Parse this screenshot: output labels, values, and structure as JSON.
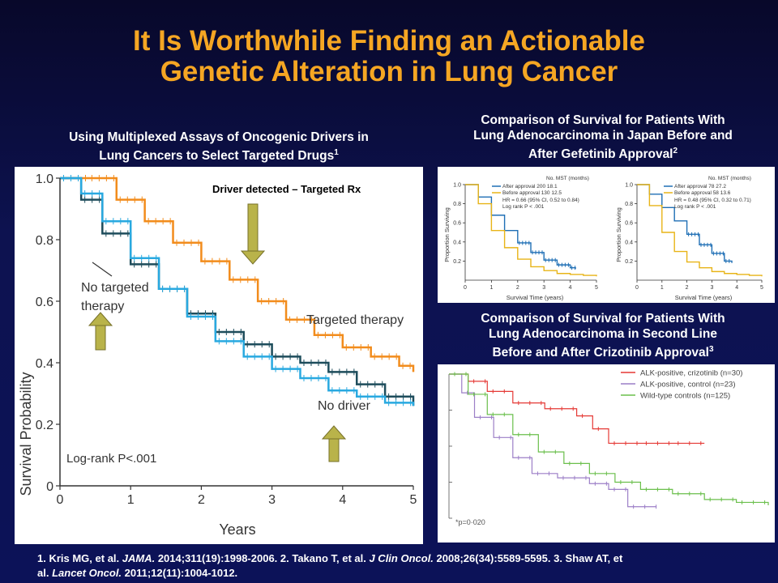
{
  "slide": {
    "title_line1": "It Is Worthwhile Finding an Actionable",
    "title_line2": "Genetic Alteration in Lung Cancer",
    "left_heading_line1": "Using Multiplexed Assays of Oncogenic Drivers in",
    "left_heading_line2": "Lung Cancers to Select Targeted Drugs",
    "left_heading_sup": "1",
    "right_top_heading_line1": "Comparison of Survival for Patients With",
    "right_top_heading_line2": "Lung Adenocarcinoma in Japan Before and",
    "right_top_heading_line3": "After Gefetinib Approval",
    "right_top_heading_sup": "2",
    "right_bottom_heading_line1": "Comparison of Survival for Patients With",
    "right_bottom_heading_line2": "Lung Adenocarcinoma in Second Line",
    "right_bottom_heading_line3": "Before and After Crizotinib Approval",
    "right_bottom_heading_sup": "3",
    "refs": {
      "r1a": "1. Kris MG, et al. ",
      "r1j": "JAMA.",
      "r1b": " 2014;311(19):1998-2006. 2. Takano T, et al. ",
      "r2j": "J Clin Oncol.",
      "r2b": " 2008;26(34):5589-5595. 3. Shaw AT, et",
      "r3a": "al. ",
      "r3j": "Lancet Oncol.",
      "r3b": " 2011;12(11):1004-1012."
    },
    "colors": {
      "title": "#f5a623",
      "targeted": "#f28c1c",
      "no_targeted": "#1e4d5c",
      "no_driver": "#29a9e0",
      "arrow": "#b9b34a",
      "before_approval": "#e8b417",
      "after_approval": "#1f6fb5",
      "alk_crizotinib": "#e53935",
      "alk_control": "#9c7fc7",
      "wild_type": "#6abf4b"
    }
  },
  "chart_data": [
    {
      "type": "line",
      "id": "kris",
      "ylabel": "Survival Probability",
      "xlabel": "Years",
      "xlim": [
        0,
        5
      ],
      "ylim": [
        0,
        1
      ],
      "xticks": [
        "0",
        "1",
        "2",
        "3",
        "4",
        "5"
      ],
      "yticks": [
        "0",
        "0.2",
        "0.4",
        "0.6",
        "0.8",
        "1.0"
      ],
      "annotation_top": "Driver detected – Targeted Rx",
      "annotation_pvalue": "Log-rank P<.001",
      "label_no_targeted_1": "No targeted",
      "label_no_targeted_2": "therapy",
      "label_targeted": "Targeted therapy",
      "label_no_driver": "No driver",
      "series": [
        {
          "name": "Targeted therapy",
          "color": "#f28c1c",
          "x": [
            0,
            0.4,
            0.8,
            1.2,
            1.6,
            2.0,
            2.4,
            2.8,
            3.2,
            3.6,
            4.0,
            4.4,
            4.8,
            5.0
          ],
          "y": [
            1.0,
            1.0,
            0.93,
            0.86,
            0.79,
            0.73,
            0.67,
            0.6,
            0.54,
            0.49,
            0.45,
            0.42,
            0.39,
            0.37
          ]
        },
        {
          "name": "No targeted therapy",
          "color": "#1e4d5c",
          "x": [
            0,
            0.3,
            0.6,
            1.0,
            1.4,
            1.8,
            2.2,
            2.6,
            3.0,
            3.4,
            3.8,
            4.2,
            4.6,
            5.0
          ],
          "y": [
            1.0,
            0.93,
            0.82,
            0.72,
            0.64,
            0.56,
            0.5,
            0.46,
            0.42,
            0.4,
            0.37,
            0.33,
            0.29,
            0.26
          ]
        },
        {
          "name": "No driver",
          "color": "#29a9e0",
          "x": [
            0,
            0.3,
            0.6,
            1.0,
            1.4,
            1.8,
            2.2,
            2.6,
            3.0,
            3.4,
            3.8,
            4.2,
            4.6,
            5.0
          ],
          "y": [
            1.0,
            0.95,
            0.86,
            0.74,
            0.64,
            0.55,
            0.47,
            0.42,
            0.38,
            0.35,
            0.31,
            0.29,
            0.27,
            0.26
          ]
        }
      ]
    },
    {
      "type": "line",
      "id": "takano_a",
      "ylabel": "Proportion Surviving",
      "xlabel": "Survival Time (years)",
      "xlim": [
        0,
        5
      ],
      "ylim": [
        0,
        1
      ],
      "xticks": [
        "0",
        "1",
        "2",
        "3",
        "4",
        "5"
      ],
      "yticks": [
        "0.2",
        "0.4",
        "0.6",
        "0.8",
        "1.0"
      ],
      "legend_header": "No.   MST (months)",
      "legend_row1": "After approval   200    18.1",
      "legend_row2": "Before approval  130    12.5",
      "hr_text": "HR = 0.66 (95% CI, 0.52 to 0.84)",
      "logrank_text": "Log rank P < .001",
      "series": [
        {
          "name": "After approval",
          "color": "#1f6fb5",
          "x": [
            0,
            0.5,
            1.0,
            1.5,
            2.0,
            2.5,
            3.0,
            3.5,
            4.0,
            4.2
          ],
          "y": [
            1.0,
            0.87,
            0.68,
            0.52,
            0.39,
            0.29,
            0.21,
            0.16,
            0.13,
            0.12
          ]
        },
        {
          "name": "Before approval",
          "color": "#e8b417",
          "x": [
            0,
            0.5,
            1.0,
            1.5,
            2.0,
            2.5,
            3.0,
            3.5,
            4.0,
            4.5,
            5.0
          ],
          "y": [
            1.0,
            0.8,
            0.52,
            0.34,
            0.22,
            0.14,
            0.1,
            0.07,
            0.06,
            0.05,
            0.04
          ]
        }
      ]
    },
    {
      "type": "line",
      "id": "takano_b",
      "ylabel": "Proportion Surviving",
      "xlabel": "Survival Time (years)",
      "xlim": [
        0,
        5
      ],
      "ylim": [
        0,
        1
      ],
      "xticks": [
        "0",
        "1",
        "2",
        "3",
        "4",
        "5"
      ],
      "yticks": [
        "0.2",
        "0.4",
        "0.6",
        "0.8",
        "1.0"
      ],
      "legend_header": "No.   MST (months)",
      "legend_row1": "After approval   78     27.2",
      "legend_row2": "Before approval  58     13.6",
      "hr_text": "HR = 0.48 (95% CI, 0.32 to 0.71)",
      "logrank_text": "Log rank P < .001",
      "series": [
        {
          "name": "After approval",
          "color": "#1f6fb5",
          "x": [
            0,
            0.5,
            1.0,
            1.5,
            2.0,
            2.5,
            3.0,
            3.5,
            3.8
          ],
          "y": [
            1.0,
            0.9,
            0.76,
            0.62,
            0.48,
            0.37,
            0.28,
            0.2,
            0.18
          ]
        },
        {
          "name": "Before approval",
          "color": "#e8b417",
          "x": [
            0,
            0.5,
            1.0,
            1.5,
            2.0,
            2.5,
            3.0,
            3.5,
            4.0,
            4.5,
            5.0
          ],
          "y": [
            1.0,
            0.78,
            0.5,
            0.3,
            0.19,
            0.13,
            0.09,
            0.07,
            0.06,
            0.05,
            0.04
          ]
        }
      ]
    },
    {
      "type": "line",
      "id": "shaw",
      "xlim": [
        0,
        1
      ],
      "ylim": [
        0,
        1
      ],
      "annotation_pvalue": "*p=0·020",
      "series": [
        {
          "name": "ALK-positive, crizotinib (n=30)",
          "color": "#e53935",
          "x": [
            0,
            0.06,
            0.12,
            0.2,
            0.3,
            0.4,
            0.45,
            0.5,
            0.6,
            0.7,
            0.8
          ],
          "y": [
            1.0,
            0.95,
            0.88,
            0.8,
            0.76,
            0.71,
            0.62,
            0.52,
            0.52,
            0.52,
            0.52
          ]
        },
        {
          "name": "ALK-positive, control (n=23)",
          "color": "#9c7fc7",
          "x": [
            0,
            0.04,
            0.08,
            0.14,
            0.2,
            0.26,
            0.34,
            0.44,
            0.5,
            0.56,
            0.65
          ],
          "y": [
            1.0,
            0.87,
            0.7,
            0.56,
            0.42,
            0.31,
            0.28,
            0.24,
            0.2,
            0.08,
            0.08
          ]
        },
        {
          "name": "Wild-type controls (n=125)",
          "color": "#6abf4b",
          "x": [
            0,
            0.06,
            0.12,
            0.2,
            0.28,
            0.36,
            0.44,
            0.52,
            0.6,
            0.7,
            0.8,
            0.9,
            1.0
          ],
          "y": [
            1.0,
            0.86,
            0.72,
            0.58,
            0.46,
            0.38,
            0.31,
            0.25,
            0.2,
            0.17,
            0.13,
            0.11,
            0.09
          ]
        }
      ]
    }
  ]
}
